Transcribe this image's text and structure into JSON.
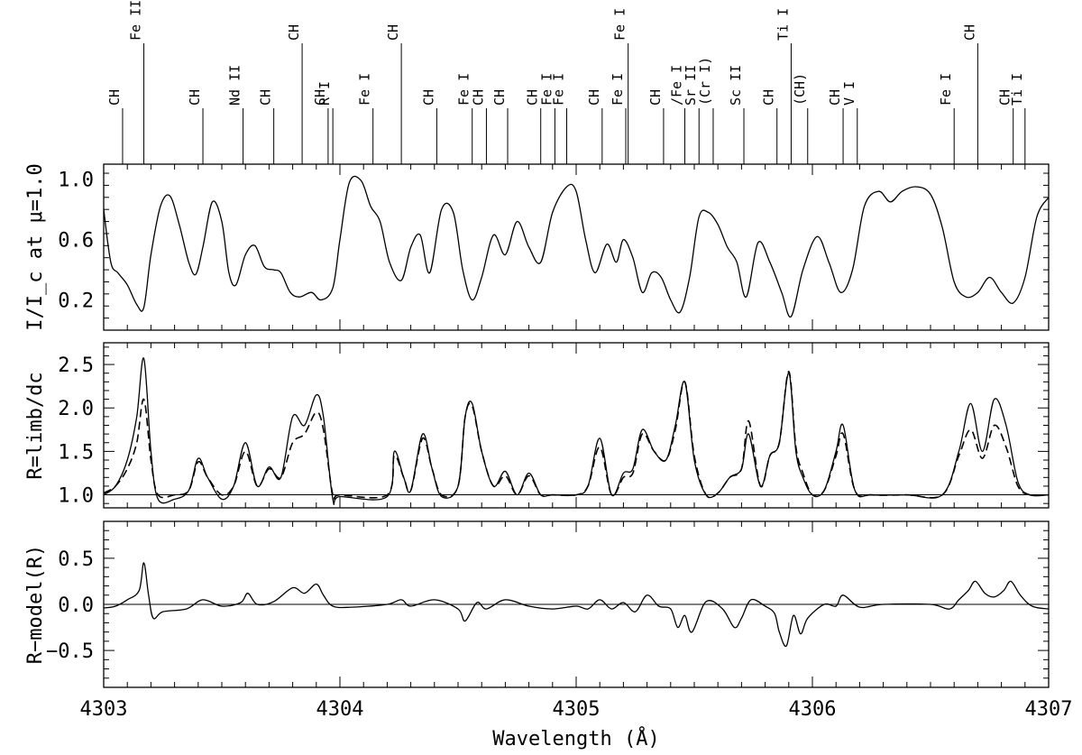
{
  "chart_data": {
    "type": "line",
    "x_axis": {
      "label": "Wavelength (Å)",
      "range": [
        4303,
        4307
      ],
      "ticks": [
        4303,
        4304,
        4305,
        4306,
        4307
      ]
    },
    "line_ids": [
      {
        "w": 4303.08,
        "label": "CH",
        "tall": false
      },
      {
        "w": 4303.17,
        "label": "Fe II",
        "tall": true
      },
      {
        "w": 4303.42,
        "label": "CH",
        "tall": false
      },
      {
        "w": 4303.59,
        "label": "Nd II",
        "tall": false
      },
      {
        "w": 4303.72,
        "label": "CH",
        "tall": false
      },
      {
        "w": 4303.84,
        "label": "CH",
        "tall": true
      },
      {
        "w": 4303.95,
        "label": "CH",
        "tall": false
      },
      {
        "w": 4303.97,
        "label": "R I",
        "tall": false
      },
      {
        "w": 4304.14,
        "label": "Fe I",
        "tall": false
      },
      {
        "w": 4304.26,
        "label": "CH",
        "tall": true
      },
      {
        "w": 4304.41,
        "label": "CH",
        "tall": false
      },
      {
        "w": 4304.56,
        "label": "Fe I",
        "tall": false
      },
      {
        "w": 4304.62,
        "label": "CH",
        "tall": false
      },
      {
        "w": 4304.71,
        "label": "CH",
        "tall": false
      },
      {
        "w": 4304.85,
        "label": "CH",
        "tall": false
      },
      {
        "w": 4304.91,
        "label": "Fe I",
        "tall": false
      },
      {
        "w": 4304.96,
        "label": "Fe I",
        "tall": false
      },
      {
        "w": 4305.11,
        "label": "CH",
        "tall": false
      },
      {
        "w": 4305.21,
        "label": "Fe I",
        "tall": false
      },
      {
        "w": 4305.22,
        "label": "Fe I",
        "tall": true
      },
      {
        "w": 4305.37,
        "label": "CH",
        "tall": false
      },
      {
        "w": 4305.46,
        "label": "/Fe I",
        "tall": false
      },
      {
        "w": 4305.52,
        "label": "Sr II",
        "tall": false
      },
      {
        "w": 4305.58,
        "label": "(Cr I)",
        "tall": false
      },
      {
        "w": 4305.71,
        "label": "Sc II",
        "tall": false
      },
      {
        "w": 4305.85,
        "label": "CH",
        "tall": false
      },
      {
        "w": 4305.91,
        "label": "Ti I",
        "tall": true
      },
      {
        "w": 4305.98,
        "label": "(CH)",
        "tall": false
      },
      {
        "w": 4306.13,
        "label": "CH",
        "tall": false
      },
      {
        "w": 4306.19,
        "label": "V I",
        "tall": false
      },
      {
        "w": 4306.6,
        "label": "Fe I",
        "tall": false
      },
      {
        "w": 4306.7,
        "label": "CH",
        "tall": true
      },
      {
        "w": 4306.85,
        "label": "CH",
        "tall": false
      },
      {
        "w": 4306.9,
        "label": "Ti I",
        "tall": false
      }
    ],
    "panels": [
      {
        "id": "intensity",
        "ylabel": "I/I_c at μ=1.0",
        "ylim": [
          0.0,
          1.1
        ],
        "yticks": [
          0.2,
          0.6,
          1.0
        ],
        "ytick_labels": [
          "0.2",
          "0.6",
          "1.0"
        ],
        "hline": null,
        "series": [
          {
            "style": "solid",
            "x": [
              4303.0,
              4303.03,
              4303.06,
              4303.1,
              4303.14,
              4303.17,
              4303.2,
              4303.24,
              4303.28,
              4303.32,
              4303.36,
              4303.39,
              4303.42,
              4303.46,
              4303.5,
              4303.53,
              4303.56,
              4303.6,
              4303.64,
              4303.68,
              4303.72,
              4303.75,
              4303.79,
              4303.83,
              4303.88,
              4303.92,
              4303.97,
              4304.0,
              4304.04,
              4304.09,
              4304.13,
              4304.17,
              4304.21,
              4304.26,
              4304.3,
              4304.34,
              4304.38,
              4304.43,
              4304.48,
              4304.52,
              4304.56,
              4304.6,
              4304.65,
              4304.7,
              4304.75,
              4304.8,
              4304.85,
              4304.9,
              4304.96,
              4305.0,
              4305.04,
              4305.08,
              4305.13,
              4305.17,
              4305.2,
              4305.24,
              4305.28,
              4305.32,
              4305.36,
              4305.4,
              4305.44,
              4305.48,
              4305.52,
              4305.56,
              4305.6,
              4305.64,
              4305.68,
              4305.72,
              4305.77,
              4305.82,
              4305.87,
              4305.91,
              4305.96,
              4306.02,
              4306.07,
              4306.12,
              4306.17,
              4306.22,
              4306.28,
              4306.33,
              4306.38,
              4306.44,
              4306.5,
              4306.55,
              4306.6,
              4306.65,
              4306.7,
              4306.75,
              4306.8,
              4306.85,
              4306.9,
              4306.95,
              4307.0
            ],
            "y": [
              0.8,
              0.45,
              0.38,
              0.3,
              0.17,
              0.15,
              0.5,
              0.82,
              0.89,
              0.7,
              0.45,
              0.37,
              0.55,
              0.85,
              0.72,
              0.38,
              0.3,
              0.5,
              0.56,
              0.42,
              0.4,
              0.38,
              0.25,
              0.22,
              0.25,
              0.2,
              0.28,
              0.6,
              0.98,
              0.99,
              0.82,
              0.72,
              0.45,
              0.33,
              0.55,
              0.63,
              0.38,
              0.8,
              0.78,
              0.4,
              0.2,
              0.35,
              0.63,
              0.5,
              0.72,
              0.55,
              0.45,
              0.78,
              0.95,
              0.92,
              0.6,
              0.38,
              0.57,
              0.45,
              0.6,
              0.48,
              0.25,
              0.38,
              0.35,
              0.2,
              0.12,
              0.35,
              0.75,
              0.78,
              0.7,
              0.55,
              0.45,
              0.22,
              0.58,
              0.45,
              0.25,
              0.09,
              0.4,
              0.62,
              0.45,
              0.25,
              0.4,
              0.82,
              0.92,
              0.85,
              0.92,
              0.95,
              0.9,
              0.68,
              0.32,
              0.22,
              0.25,
              0.35,
              0.25,
              0.18,
              0.35,
              0.75,
              0.88
            ]
          }
        ]
      },
      {
        "id": "ratio",
        "ylabel": "R=limb/dc",
        "ylim": [
          0.85,
          2.75
        ],
        "yticks": [
          1.0,
          1.5,
          2.0,
          2.5
        ],
        "ytick_labels": [
          "1.0",
          "1.5",
          "2.0",
          "2.5"
        ],
        "hline": 1.0,
        "series": [
          {
            "style": "solid",
            "x": [
              4303.0,
              4303.05,
              4303.1,
              4303.14,
              4303.17,
              4303.2,
              4303.23,
              4303.3,
              4303.36,
              4303.4,
              4303.44,
              4303.5,
              4303.55,
              4303.6,
              4303.65,
              4303.7,
              4303.75,
              4303.8,
              4303.85,
              4303.9,
              4303.93,
              4303.97,
              4304.0,
              4304.2,
              4304.23,
              4304.27,
              4304.3,
              4304.35,
              4304.39,
              4304.43,
              4304.5,
              4304.53,
              4304.56,
              4304.6,
              4304.65,
              4304.7,
              4304.75,
              4304.8,
              4304.85,
              4304.9,
              4305.0,
              4305.05,
              4305.1,
              4305.15,
              4305.2,
              4305.24,
              4305.28,
              4305.33,
              4305.38,
              4305.42,
              4305.46,
              4305.5,
              4305.55,
              4305.6,
              4305.65,
              4305.7,
              4305.73,
              4305.78,
              4305.82,
              4305.86,
              4305.9,
              4305.93,
              4305.96,
              4306.0,
              4306.05,
              4306.1,
              4306.13,
              4306.18,
              4306.25,
              4306.4,
              4306.55,
              4306.62,
              4306.67,
              4306.72,
              4306.77,
              4306.82,
              4306.87,
              4306.92,
              4307.0
            ],
            "y": [
              1.0,
              1.1,
              1.4,
              1.9,
              2.57,
              1.5,
              0.95,
              0.95,
              1.05,
              1.42,
              1.2,
              0.95,
              1.1,
              1.6,
              1.1,
              1.32,
              1.2,
              1.9,
              1.8,
              2.15,
              1.9,
              0.95,
              0.98,
              0.98,
              1.5,
              1.2,
              1.05,
              1.7,
              1.3,
              0.98,
              1.1,
              1.9,
              2.05,
              1.5,
              1.1,
              1.27,
              1.0,
              1.25,
              1.0,
              1.0,
              1.0,
              1.1,
              1.65,
              1.0,
              1.25,
              1.3,
              1.75,
              1.5,
              1.4,
              1.8,
              2.3,
              1.4,
              1.0,
              1.02,
              1.2,
              1.3,
              1.7,
              1.1,
              1.45,
              1.6,
              2.4,
              1.5,
              1.2,
              1.0,
              1.05,
              1.5,
              1.8,
              1.05,
              1.0,
              1.0,
              1.0,
              1.5,
              2.05,
              1.5,
              2.1,
              1.8,
              1.15,
              1.0,
              1.0
            ]
          },
          {
            "style": "dashed",
            "x": [
              4303.0,
              4303.05,
              4303.1,
              4303.14,
              4303.17,
              4303.2,
              4303.23,
              4303.3,
              4303.36,
              4303.4,
              4303.44,
              4303.5,
              4303.55,
              4303.6,
              4303.65,
              4303.7,
              4303.75,
              4303.8,
              4303.85,
              4303.9,
              4303.93,
              4303.97,
              4304.0,
              4304.2,
              4304.23,
              4304.27,
              4304.3,
              4304.35,
              4304.39,
              4304.43,
              4304.5,
              4304.53,
              4304.56,
              4304.6,
              4304.65,
              4304.7,
              4304.75,
              4304.8,
              4304.85,
              4304.9,
              4305.0,
              4305.05,
              4305.1,
              4305.15,
              4305.2,
              4305.24,
              4305.28,
              4305.33,
              4305.38,
              4305.42,
              4305.46,
              4305.5,
              4305.55,
              4305.6,
              4305.65,
              4305.7,
              4305.73,
              4305.78,
              4305.82,
              4305.86,
              4305.9,
              4305.93,
              4305.96,
              4306.0,
              4306.05,
              4306.1,
              4306.13,
              4306.18,
              4306.25,
              4306.4,
              4306.55,
              4306.62,
              4306.67,
              4306.72,
              4306.77,
              4306.82,
              4306.87,
              4306.92,
              4307.0
            ],
            "y": [
              1.02,
              1.1,
              1.3,
              1.6,
              2.1,
              1.4,
              1.0,
              1.0,
              1.05,
              1.38,
              1.2,
              1.0,
              1.1,
              1.5,
              1.1,
              1.3,
              1.2,
              1.6,
              1.7,
              1.95,
              1.75,
              1.0,
              1.0,
              1.0,
              1.45,
              1.2,
              1.05,
              1.65,
              1.3,
              1.0,
              1.1,
              1.9,
              2.02,
              1.5,
              1.1,
              1.22,
              1.0,
              1.22,
              1.0,
              1.0,
              1.0,
              1.1,
              1.55,
              1.0,
              1.2,
              1.25,
              1.7,
              1.5,
              1.4,
              1.75,
              2.3,
              1.45,
              1.0,
              1.02,
              1.2,
              1.3,
              1.85,
              1.1,
              1.45,
              1.6,
              2.42,
              1.55,
              1.25,
              1.0,
              1.05,
              1.45,
              1.7,
              1.05,
              1.0,
              1.0,
              1.0,
              1.45,
              1.75,
              1.42,
              1.8,
              1.55,
              1.1,
              1.0,
              1.0
            ]
          }
        ]
      },
      {
        "id": "residual",
        "ylabel": "R−model(R)",
        "ylim": [
          -0.9,
          0.9
        ],
        "yticks": [
          -0.5,
          0.0,
          0.5
        ],
        "ytick_labels": [
          "−0.5",
          "0.0",
          "0.5"
        ],
        "hline": 0.0,
        "series": [
          {
            "style": "solid",
            "x": [
              4303.0,
              4303.05,
              4303.1,
              4303.15,
              4303.17,
              4303.19,
              4303.21,
              4303.25,
              4303.35,
              4303.42,
              4303.5,
              4303.58,
              4303.61,
              4303.65,
              4303.72,
              4303.8,
              4303.85,
              4303.9,
              4303.93,
              4303.97,
              4304.05,
              4304.2,
              4304.26,
              4304.3,
              4304.4,
              4304.5,
              4304.53,
              4304.58,
              4304.62,
              4304.7,
              4304.8,
              4304.9,
              4305.0,
              4305.05,
              4305.1,
              4305.15,
              4305.2,
              4305.25,
              4305.3,
              4305.35,
              4305.4,
              4305.43,
              4305.46,
              4305.49,
              4305.55,
              4305.62,
              4305.67,
              4305.7,
              4305.74,
              4305.8,
              4305.84,
              4305.86,
              4305.89,
              4305.92,
              4305.95,
              4305.98,
              4306.05,
              4306.1,
              4306.13,
              4306.2,
              4306.3,
              4306.5,
              4306.58,
              4306.62,
              4306.66,
              4306.69,
              4306.73,
              4306.77,
              4306.81,
              4306.84,
              4306.88,
              4306.93,
              4307.0
            ],
            "y": [
              -0.04,
              -0.02,
              0.05,
              0.15,
              0.45,
              0.1,
              -0.15,
              -0.08,
              -0.05,
              0.05,
              -0.02,
              0.02,
              0.12,
              0.0,
              0.03,
              0.18,
              0.12,
              0.22,
              0.1,
              -0.02,
              -0.03,
              0.0,
              0.05,
              -0.02,
              0.05,
              -0.05,
              -0.18,
              0.02,
              -0.05,
              0.05,
              -0.02,
              -0.05,
              -0.02,
              -0.05,
              0.05,
              -0.05,
              0.02,
              -0.08,
              0.1,
              -0.02,
              -0.05,
              -0.25,
              -0.12,
              -0.3,
              0.03,
              -0.05,
              -0.25,
              -0.15,
              0.05,
              -0.02,
              -0.1,
              -0.3,
              -0.45,
              -0.12,
              -0.32,
              -0.15,
              0.0,
              -0.02,
              0.1,
              -0.03,
              0.0,
              0.0,
              -0.05,
              0.05,
              0.15,
              0.25,
              0.12,
              0.08,
              0.15,
              0.25,
              0.1,
              -0.02,
              -0.05
            ]
          }
        ]
      }
    ]
  }
}
